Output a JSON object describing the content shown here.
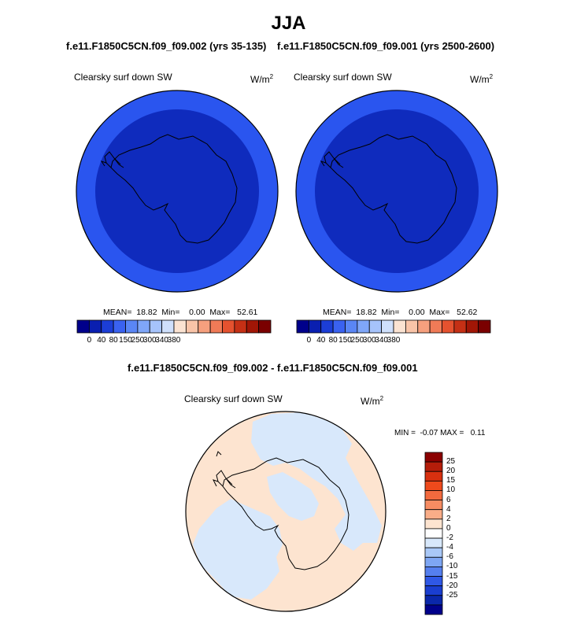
{
  "figure": {
    "title": "JJA",
    "subtitle_left": "f.e11.F1850C5CN.f09_f09.002 (yrs 35-135)",
    "subtitle_right": "f.e11.F1850C5CN.f09_f09.001 (yrs 2500-2600)",
    "diff_title": "f.e11.F1850C5CN.f09_f09.002 - f.e11.F1850C5CN.f09_f09.001"
  },
  "panels": [
    {
      "variable": "Clearsky surf down SW",
      "units": "W/m",
      "units_sup": "2",
      "stats_text": "MEAN=  18.82  Min=    0.00  Max=   52.61",
      "fill_outer": "#2a55ef",
      "fill_inner": "#0f2bbd"
    },
    {
      "variable": "Clearsky surf down SW",
      "units": "W/m",
      "units_sup": "2",
      "stats_text": "MEAN=  18.82  Min=    0.00  Max=   52.62",
      "fill_outer": "#2a55ef",
      "fill_inner": "#0f2bbd"
    }
  ],
  "horizontal_colorbar": {
    "colors": [
      "#00008b",
      "#0a1fb0",
      "#1c3ed6",
      "#3a62f0",
      "#5a86f5",
      "#7fa6f8",
      "#a6c3fb",
      "#cfe0fc",
      "#fbe3d2",
      "#f9c4a8",
      "#f6a07e",
      "#f07b57",
      "#e5522f",
      "#c53015",
      "#a11606",
      "#7a0000"
    ],
    "labels": [
      "0",
      "40",
      "80",
      "150",
      "250",
      "300",
      "340",
      "380"
    ]
  },
  "diff_panel": {
    "variable": "Clearsky surf down SW",
    "units": "W/m",
    "units_sup": "2",
    "stats_text": "MIN =  -0.07 MAX =   0.11",
    "fill_positive": "#fde4d0",
    "fill_negative": "#d8e8fb"
  },
  "vertical_colorbar": {
    "colors": [
      "#8b0000",
      "#b51d0a",
      "#d8300f",
      "#ee4a1c",
      "#f36a3e",
      "#f78c62",
      "#f9ad88",
      "#fde4d0",
      "#ffffff",
      "#d8e8fb",
      "#a9c8f7",
      "#7ea6f3",
      "#557fee",
      "#2f58e6",
      "#1a3ed0",
      "#0a27aa",
      "#00008b"
    ],
    "labels": [
      "25",
      "20",
      "15",
      "10",
      "6",
      "4",
      "2",
      "0",
      "-2",
      "-4",
      "-6",
      "-10",
      "-15",
      "-20",
      "-25"
    ]
  }
}
